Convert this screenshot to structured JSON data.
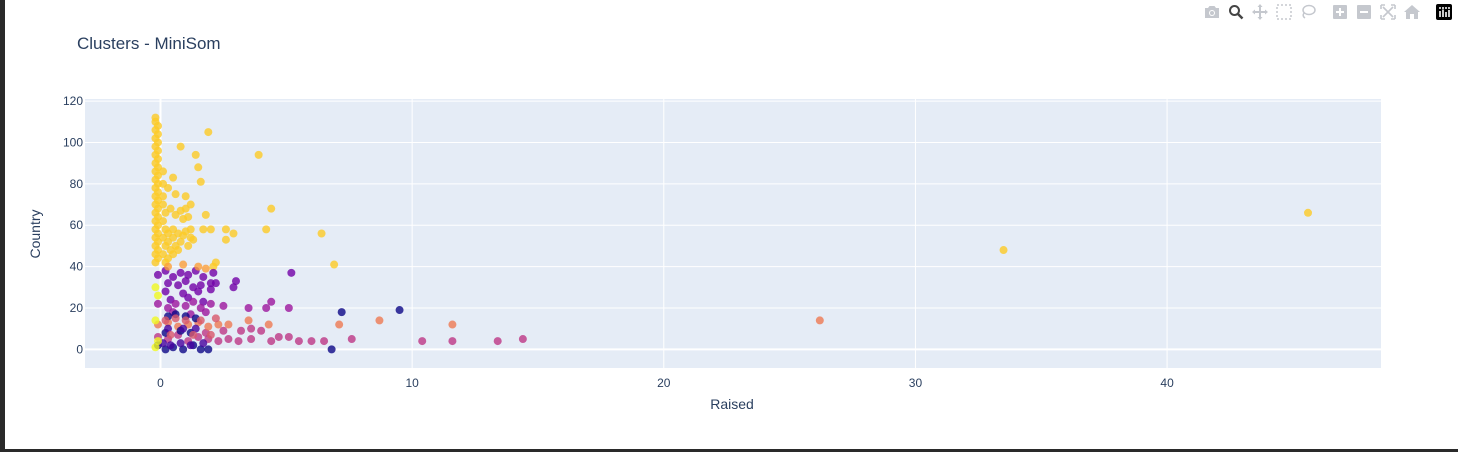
{
  "modebar": {
    "buttons": [
      "camera-icon",
      "zoom-icon",
      "pan-icon",
      "box-select-icon",
      "lasso-select-icon",
      "zoom-in-icon",
      "zoom-out-icon",
      "autoscale-icon",
      "reset-axes-icon",
      "plotly-logo-icon"
    ]
  },
  "colors": {
    "plot_bg": "#e5ecf6",
    "grid": "#ffffff",
    "text": "#2a3f5f",
    "clusters": [
      "#0d0887",
      "#46039f",
      "#7201a8",
      "#9c179e",
      "#bd3786",
      "#d8576b",
      "#ed7953",
      "#fb9f3a",
      "#fdca26",
      "#f0f921"
    ]
  },
  "chart_data": {
    "type": "scatter",
    "title": "Clusters - MiniSom",
    "xlabel": "Raised",
    "ylabel": "Country",
    "xlim": [
      -3,
      48.5
    ],
    "ylim": [
      -9,
      121
    ],
    "xticks": [
      0,
      10,
      20,
      30,
      40
    ],
    "yticks": [
      0,
      20,
      40,
      60,
      80,
      100,
      120
    ],
    "grid": true,
    "points": [
      [
        -0.2,
        112,
        8
      ],
      [
        -0.2,
        110,
        8
      ],
      [
        -0.1,
        108,
        8
      ],
      [
        -0.2,
        106,
        8
      ],
      [
        -0.1,
        104,
        8
      ],
      [
        -0.2,
        102,
        8
      ],
      [
        -0.1,
        100,
        8
      ],
      [
        -0.2,
        98,
        8
      ],
      [
        -0.1,
        96,
        8
      ],
      [
        -0.2,
        94,
        8
      ],
      [
        -0.1,
        92,
        8
      ],
      [
        -0.2,
        90,
        8
      ],
      [
        -0.1,
        88,
        8
      ],
      [
        -0.2,
        86,
        8
      ],
      [
        -0.1,
        84,
        8
      ],
      [
        -0.2,
        82,
        8
      ],
      [
        -0.1,
        80,
        8
      ],
      [
        -0.2,
        78,
        8
      ],
      [
        -0.1,
        76,
        8
      ],
      [
        -0.2,
        74,
        8
      ],
      [
        -0.1,
        72,
        8
      ],
      [
        -0.2,
        70,
        8
      ],
      [
        -0.1,
        68,
        8
      ],
      [
        -0.2,
        66,
        8
      ],
      [
        -0.1,
        64,
        8
      ],
      [
        -0.2,
        62,
        8
      ],
      [
        -0.1,
        60,
        8
      ],
      [
        -0.2,
        58,
        8
      ],
      [
        -0.1,
        56,
        8
      ],
      [
        -0.2,
        54,
        8
      ],
      [
        -0.1,
        52,
        8
      ],
      [
        -0.2,
        50,
        8
      ],
      [
        -0.1,
        48,
        8
      ],
      [
        -0.2,
        46,
        8
      ],
      [
        -0.1,
        44,
        8
      ],
      [
        -0.2,
        42,
        8
      ],
      [
        0.1,
        86,
        8
      ],
      [
        0.1,
        80,
        8
      ],
      [
        0.1,
        74,
        8
      ],
      [
        0.1,
        70,
        8
      ],
      [
        0.2,
        66,
        8
      ],
      [
        0.1,
        62,
        8
      ],
      [
        0.2,
        58,
        8
      ],
      [
        0.1,
        54,
        8
      ],
      [
        0.2,
        50,
        8
      ],
      [
        0.1,
        46,
        8
      ],
      [
        0.2,
        42,
        8
      ],
      [
        0.3,
        56,
        8
      ],
      [
        0.3,
        52,
        8
      ],
      [
        0.4,
        48,
        8
      ],
      [
        0.3,
        44,
        8
      ],
      [
        0.5,
        58,
        8
      ],
      [
        0.5,
        54,
        8
      ],
      [
        0.6,
        50,
        8
      ],
      [
        0.5,
        46,
        8
      ],
      [
        0.7,
        56,
        8
      ],
      [
        0.8,
        52,
        8
      ],
      [
        0.7,
        48,
        8
      ],
      [
        0.9,
        55,
        8
      ],
      [
        1.0,
        57,
        8
      ],
      [
        1.1,
        50,
        8
      ],
      [
        1.2,
        54,
        8
      ],
      [
        0.4,
        68,
        8
      ],
      [
        0.6,
        65,
        8
      ],
      [
        0.8,
        67,
        8
      ],
      [
        0.9,
        63,
        8
      ],
      [
        1.0,
        68,
        8
      ],
      [
        1.1,
        64,
        8
      ],
      [
        1.2,
        70,
        8
      ],
      [
        1.0,
        74,
        8
      ],
      [
        1.2,
        58,
        8
      ],
      [
        1.3,
        53,
        8
      ],
      [
        0.6,
        75,
        8
      ],
      [
        0.5,
        83,
        8
      ],
      [
        0.3,
        78,
        8
      ],
      [
        0.8,
        98,
        8
      ],
      [
        1.4,
        94,
        8
      ],
      [
        1.5,
        88,
        8
      ],
      [
        1.6,
        81,
        8
      ],
      [
        1.8,
        65,
        8
      ],
      [
        1.7,
        58,
        8
      ],
      [
        2.0,
        58,
        8
      ],
      [
        1.9,
        105,
        8
      ],
      [
        2.1,
        40,
        8
      ],
      [
        2.2,
        42,
        8
      ],
      [
        2.6,
        58,
        8
      ],
      [
        2.6,
        53,
        8
      ],
      [
        2.9,
        56,
        8
      ],
      [
        3.9,
        94,
        8
      ],
      [
        4.2,
        58,
        8
      ],
      [
        4.4,
        68,
        8
      ],
      [
        6.4,
        56,
        8
      ],
      [
        6.9,
        41,
        8
      ],
      [
        33.5,
        48,
        8
      ],
      [
        45.6,
        66,
        8
      ],
      [
        -0.1,
        36,
        2
      ],
      [
        0.2,
        38,
        2
      ],
      [
        0.5,
        35,
        2
      ],
      [
        0.8,
        37,
        2
      ],
      [
        1.1,
        36,
        2
      ],
      [
        1.4,
        38,
        2
      ],
      [
        1.7,
        35,
        2
      ],
      [
        2.1,
        37,
        2
      ],
      [
        0.3,
        32,
        2
      ],
      [
        0.7,
        31,
        2
      ],
      [
        1.0,
        33,
        2
      ],
      [
        1.3,
        30,
        2
      ],
      [
        1.6,
        31,
        2
      ],
      [
        2.0,
        32,
        2
      ],
      [
        2.2,
        32,
        2
      ],
      [
        0.2,
        28,
        2
      ],
      [
        0.9,
        27,
        2
      ],
      [
        1.5,
        28,
        2
      ],
      [
        2.0,
        29,
        2
      ],
      [
        0.4,
        24,
        2
      ],
      [
        1.1,
        25,
        2
      ],
      [
        1.7,
        23,
        2
      ],
      [
        5.2,
        37,
        2
      ],
      [
        3.0,
        33,
        2
      ],
      [
        2.9,
        30,
        2
      ],
      [
        -0.1,
        22,
        3
      ],
      [
        0.3,
        20,
        3
      ],
      [
        0.6,
        22,
        3
      ],
      [
        1.0,
        21,
        3
      ],
      [
        1.3,
        23,
        3
      ],
      [
        1.6,
        20,
        3
      ],
      [
        2.0,
        22,
        3
      ],
      [
        2.5,
        21,
        3
      ],
      [
        3.5,
        20,
        3
      ],
      [
        4.2,
        20,
        3
      ],
      [
        4.4,
        23,
        3
      ],
      [
        5.1,
        20,
        3
      ],
      [
        0.5,
        18,
        3
      ],
      [
        1.2,
        17,
        3
      ],
      [
        1.8,
        18,
        3
      ],
      [
        -0.1,
        6,
        4
      ],
      [
        0.3,
        5,
        4
      ],
      [
        0.7,
        7,
        4
      ],
      [
        1.1,
        4,
        4
      ],
      [
        1.5,
        6,
        4
      ],
      [
        1.9,
        5,
        4
      ],
      [
        2.3,
        4,
        4
      ],
      [
        2.7,
        5,
        4
      ],
      [
        3.1,
        4,
        4
      ],
      [
        3.6,
        5,
        4
      ],
      [
        4.4,
        4,
        4
      ],
      [
        4.7,
        6,
        4
      ],
      [
        5.1,
        6,
        4
      ],
      [
        5.5,
        4,
        4
      ],
      [
        6.0,
        4,
        4
      ],
      [
        6.5,
        4,
        4
      ],
      [
        7.6,
        5,
        4
      ],
      [
        10.4,
        4,
        4
      ],
      [
        11.6,
        4,
        4
      ],
      [
        13.4,
        4,
        4
      ],
      [
        14.4,
        5,
        4
      ],
      [
        3.2,
        9,
        4
      ],
      [
        3.6,
        10,
        4
      ],
      [
        4.0,
        9,
        4
      ],
      [
        1.8,
        8,
        4
      ],
      [
        2.5,
        9,
        4
      ],
      [
        -0.1,
        12,
        6
      ],
      [
        0.3,
        13,
        6
      ],
      [
        0.7,
        11,
        6
      ],
      [
        1.1,
        12,
        6
      ],
      [
        1.5,
        13,
        6
      ],
      [
        1.9,
        11,
        6
      ],
      [
        2.3,
        12,
        6
      ],
      [
        2.7,
        12,
        6
      ],
      [
        3.5,
        14,
        6
      ],
      [
        4.3,
        12,
        6
      ],
      [
        7.1,
        12,
        6
      ],
      [
        8.7,
        14,
        6
      ],
      [
        11.6,
        12,
        6
      ],
      [
        26.2,
        14,
        6
      ],
      [
        -0.1,
        2,
        0
      ],
      [
        0.2,
        0,
        0
      ],
      [
        0.5,
        1,
        0
      ],
      [
        0.9,
        0,
        0
      ],
      [
        1.3,
        2,
        0
      ],
      [
        1.6,
        0,
        0
      ],
      [
        1.9,
        0,
        0
      ],
      [
        6.8,
        0,
        0
      ],
      [
        7.2,
        18,
        0
      ],
      [
        9.5,
        19,
        0
      ],
      [
        0.3,
        16,
        0
      ],
      [
        0.6,
        17,
        0
      ],
      [
        1.0,
        16,
        0
      ],
      [
        1.4,
        15,
        0
      ],
      [
        0.2,
        8,
        0
      ],
      [
        0.8,
        9,
        0
      ],
      [
        1.2,
        8,
        0
      ],
      [
        0.1,
        3,
        1
      ],
      [
        0.4,
        2,
        1
      ],
      [
        0.8,
        3,
        1
      ],
      [
        1.2,
        2,
        1
      ],
      [
        1.7,
        3,
        1
      ],
      [
        0.3,
        10,
        1
      ],
      [
        0.9,
        10,
        1
      ],
      [
        1.4,
        10,
        1
      ],
      [
        -0.2,
        30,
        9
      ],
      [
        -0.1,
        26,
        9
      ],
      [
        -0.2,
        14,
        9
      ],
      [
        -0.1,
        4,
        9
      ],
      [
        -0.2,
        1,
        9
      ],
      [
        0.2,
        14,
        5
      ],
      [
        0.6,
        15,
        5
      ],
      [
        1.0,
        14,
        5
      ],
      [
        1.6,
        14,
        5
      ],
      [
        2.2,
        15,
        5
      ],
      [
        0.4,
        7,
        5
      ],
      [
        1.3,
        7,
        5
      ],
      [
        2.0,
        7,
        5
      ],
      [
        0.3,
        40,
        7
      ],
      [
        0.9,
        41,
        7
      ],
      [
        1.5,
        40,
        7
      ],
      [
        1.8,
        39,
        7
      ]
    ]
  }
}
